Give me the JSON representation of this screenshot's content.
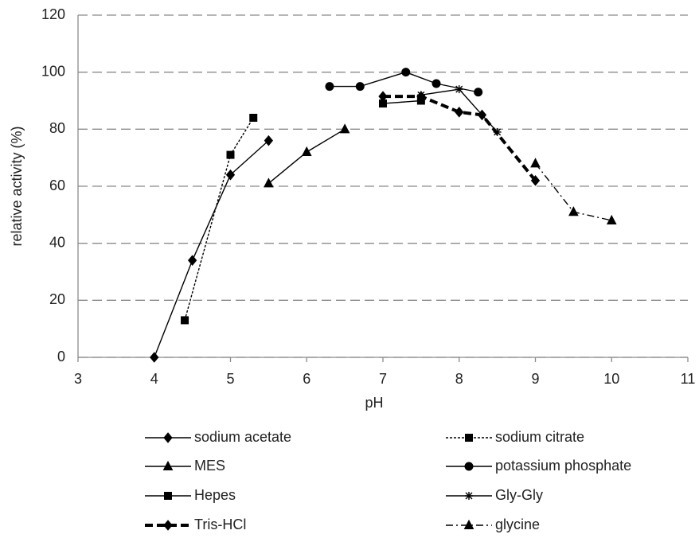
{
  "chart_data": {
    "type": "line",
    "x_label": "pH",
    "y_label": "relative activity (%)",
    "xlim": [
      3,
      11
    ],
    "xticks": [
      3,
      4,
      5,
      6,
      7,
      8,
      9,
      10,
      11
    ],
    "ylim": [
      0,
      120
    ],
    "yticks": [
      0,
      20,
      40,
      60,
      80,
      100,
      120
    ],
    "grid": true,
    "legend": "below",
    "series": [
      {
        "name": "sodium acetate",
        "color": "#000000",
        "marker": "diamond",
        "line_style": "solid",
        "x": [
          4,
          4.5,
          5,
          5.5
        ],
        "values": [
          0,
          34,
          64,
          76
        ]
      },
      {
        "name": "sodium citrate",
        "color": "#000000",
        "marker": "square",
        "line_style": "dotted",
        "x": [
          4.4,
          5,
          5.3
        ],
        "values": [
          13,
          71,
          84
        ]
      },
      {
        "name": "MES",
        "color": "#000000",
        "marker": "triangle",
        "line_style": "solid",
        "x": [
          5.5,
          6,
          6.5
        ],
        "values": [
          61,
          72,
          80
        ]
      },
      {
        "name": "potassium phosphate",
        "color": "#000000",
        "marker": "circle",
        "line_style": "solid",
        "x": [
          6.3,
          6.7,
          7.3,
          7.7,
          8.25
        ],
        "values": [
          95,
          95,
          100,
          96,
          93
        ]
      },
      {
        "name": "Hepes",
        "color": "#000000",
        "marker": "square",
        "line_style": "solid",
        "x": [
          7,
          7.5
        ],
        "values": [
          89,
          90
        ]
      },
      {
        "name": "Gly-Gly",
        "color": "#000000",
        "marker": "star",
        "line_style": "solid",
        "x": [
          7.5,
          8,
          8.5
        ],
        "values": [
          92,
          94,
          79
        ]
      },
      {
        "name": "Tris-HCl",
        "color": "#000000",
        "marker": "diamond",
        "line_style": "dashed",
        "x": [
          7,
          7.5,
          8,
          8.3,
          9
        ],
        "values": [
          91.5,
          91.5,
          86,
          85,
          62
        ]
      },
      {
        "name": "glycine",
        "color": "#000000",
        "marker": "triangle",
        "line_style": "dashdot",
        "x": [
          9,
          9.5,
          10
        ],
        "values": [
          68,
          51,
          48
        ]
      }
    ]
  }
}
